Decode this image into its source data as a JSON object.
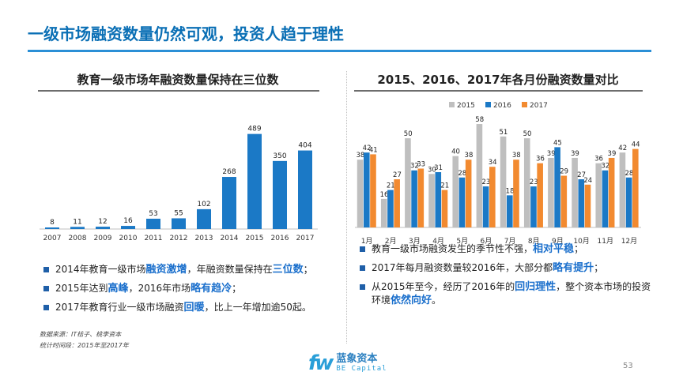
{
  "slide": {
    "title": "一级市场融资数量仍然可观，投资人趋于理性",
    "page_number": "53"
  },
  "left": {
    "heading": "教育一级市场年融资数量保持在三位数",
    "bullets": [
      {
        "parts": [
          {
            "t": "2014年教育一级市场"
          },
          {
            "t": "融资激增",
            "hl": true
          },
          {
            "t": "，年融资数量保持在"
          },
          {
            "t": "三位数",
            "hl": true
          },
          {
            "t": "；"
          }
        ]
      },
      {
        "parts": [
          {
            "t": "2015年达到"
          },
          {
            "t": "高峰",
            "hl": true
          },
          {
            "t": "，2016年市场"
          },
          {
            "t": "略有趋冷",
            "hl": true
          },
          {
            "t": "；"
          }
        ]
      },
      {
        "parts": [
          {
            "t": "2017年教育行业一级市场融资"
          },
          {
            "t": "回暖",
            "hl": true
          },
          {
            "t": "，比上一年增加逾50起。"
          }
        ]
      }
    ],
    "source_note": "数据来源：IT桔子、桃李资本",
    "period_note": "统计时间段：2015年至2017年"
  },
  "right": {
    "heading": "2015、2016、2017年各月份融资数量对比",
    "bullets": [
      {
        "parts": [
          {
            "t": "教育一级市场融资发生的季节性不强，"
          },
          {
            "t": "相对平稳",
            "hl": true
          },
          {
            "t": "；"
          }
        ]
      },
      {
        "parts": [
          {
            "t": "2017年每月融资数量较2016年，大部分都"
          },
          {
            "t": "略有提升",
            "hl": true
          },
          {
            "t": "；"
          }
        ]
      },
      {
        "parts": [
          {
            "t": "从2015年至今，经历了2016年的"
          },
          {
            "t": "回归理性",
            "hl": true
          },
          {
            "t": "，整个资本市场的投资环境"
          },
          {
            "t": "依然向好",
            "hl": true
          },
          {
            "t": "。"
          }
        ]
      }
    ]
  },
  "logo": {
    "cn": "蓝象资本",
    "en": "BE Capital",
    "mark": "fw"
  },
  "colors": {
    "bar_blue": "#1b79c6",
    "s2015": "#bfbfbf",
    "s2016": "#1b79c6",
    "s2017": "#f28a30",
    "highlight": "#1a6fcc"
  },
  "chart_data": [
    {
      "type": "bar",
      "categories": [
        "2007",
        "2008",
        "2009",
        "2010",
        "2011",
        "2012",
        "2013",
        "2014",
        "2015",
        "2016",
        "2017"
      ],
      "values": [
        8,
        11,
        12,
        16,
        53,
        55,
        102,
        268,
        489,
        350,
        404
      ],
      "title": "",
      "xlabel": "",
      "ylabel": "",
      "ylim": [
        0,
        520
      ],
      "grid": false
    },
    {
      "type": "bar",
      "categories": [
        "1月",
        "2月",
        "3月",
        "4月",
        "5月",
        "6月",
        "7月",
        "8月",
        "9月",
        "10月",
        "11月",
        "12月"
      ],
      "series": [
        {
          "name": "2015",
          "values": [
            38,
            16,
            50,
            30,
            40,
            58,
            51,
            50,
            39,
            39,
            36,
            42
          ]
        },
        {
          "name": "2016",
          "values": [
            42,
            21,
            32,
            31,
            28,
            23,
            18,
            23,
            45,
            27,
            32,
            28
          ]
        },
        {
          "name": "2017",
          "values": [
            41,
            27,
            33,
            21,
            38,
            34,
            38,
            36,
            29,
            24,
            39,
            44
          ]
        }
      ],
      "title": "",
      "legend": "top",
      "ylim": [
        0,
        62
      ],
      "grid": false
    }
  ]
}
